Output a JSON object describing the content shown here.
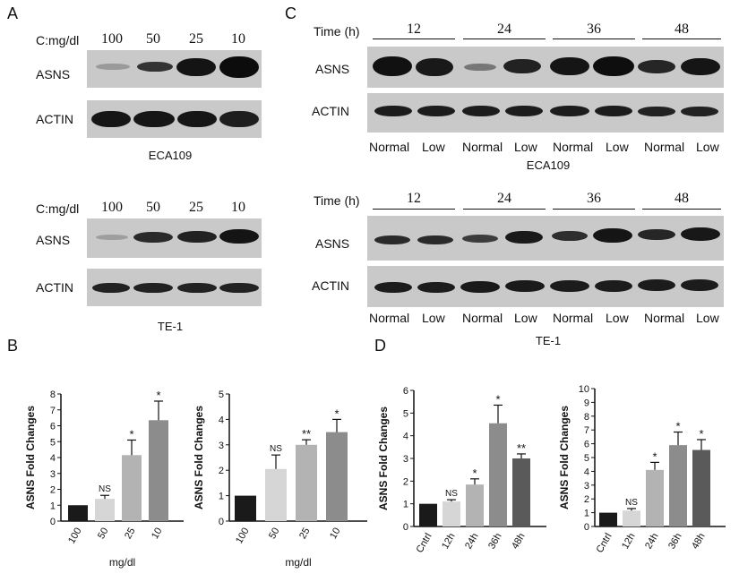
{
  "panels": {
    "A": "A",
    "B": "B",
    "C": "C",
    "D": "D"
  },
  "blot_labels": {
    "asns": "ASNS",
    "actin": "ACTIN",
    "conc_label": "C:mg/dl",
    "time_label": "Time (h)"
  },
  "concentrations": [
    "100",
    "50",
    "25",
    "10"
  ],
  "time_points": [
    "12",
    "24",
    "36",
    "48"
  ],
  "lane_pair": [
    "Normal",
    "Low"
  ],
  "cell_lines": {
    "eca": "ECA109",
    "te": "TE-1"
  },
  "band_colors": {
    "dark": "#141414",
    "gel": "#c9c9c9"
  },
  "chart_data": [
    {
      "id": "B-left",
      "type": "bar",
      "ylabel": "ASNS Fold Changes",
      "xlabel": "mg/dl",
      "categories": [
        "100",
        "50",
        "25",
        "10"
      ],
      "values": [
        1.0,
        1.4,
        4.15,
        6.35
      ],
      "errors": [
        0,
        0.22,
        0.95,
        1.2
      ],
      "annotations": [
        "",
        "NS",
        "*",
        "*"
      ],
      "ylim": [
        0,
        8
      ],
      "yticks": [
        0,
        1,
        2,
        3,
        4,
        5,
        6,
        7,
        8
      ],
      "colors": [
        "#1a1a1a",
        "#d6d6d6",
        "#b3b3b3",
        "#8c8c8c"
      ]
    },
    {
      "id": "B-right",
      "type": "bar",
      "ylabel": "ASNS Fold Changes",
      "xlabel": "mg/dl",
      "categories": [
        "100",
        "50",
        "25",
        "10"
      ],
      "values": [
        1.0,
        2.05,
        3.0,
        3.5
      ],
      "errors": [
        0,
        0.55,
        0.2,
        0.5
      ],
      "annotations": [
        "",
        "NS",
        "**",
        "*"
      ],
      "ylim": [
        0,
        5
      ],
      "yticks": [
        0,
        1,
        2,
        3,
        4,
        5
      ],
      "colors": [
        "#1a1a1a",
        "#d6d6d6",
        "#b3b3b3",
        "#8c8c8c"
      ]
    },
    {
      "id": "D-left",
      "type": "bar",
      "ylabel": "ASNS Fold Changes",
      "xlabel": "",
      "categories": [
        "Cntrl",
        "12h",
        "24h",
        "36h",
        "48h"
      ],
      "values": [
        1.0,
        1.1,
        1.85,
        4.55,
        3.0
      ],
      "errors": [
        0,
        0.08,
        0.25,
        0.8,
        0.2
      ],
      "annotations": [
        "",
        "NS",
        "*",
        "*",
        "**"
      ],
      "ylim": [
        0,
        6
      ],
      "yticks": [
        0,
        1,
        2,
        3,
        4,
        5,
        6
      ],
      "colors": [
        "#1a1a1a",
        "#d6d6d6",
        "#b3b3b3",
        "#8c8c8c",
        "#5a5a5a"
      ]
    },
    {
      "id": "D-right",
      "type": "bar",
      "ylabel": "ASNS Fold Changes",
      "xlabel": "",
      "categories": [
        "Cntrl",
        "12h",
        "24h",
        "36h",
        "48h"
      ],
      "values": [
        1.0,
        1.15,
        4.1,
        5.9,
        5.55
      ],
      "errors": [
        0,
        0.15,
        0.55,
        0.95,
        0.75
      ],
      "annotations": [
        "",
        "NS",
        "*",
        "*",
        "*"
      ],
      "ylim": [
        0,
        10
      ],
      "yticks": [
        0,
        1,
        2,
        3,
        4,
        5,
        6,
        7,
        8,
        9,
        10
      ],
      "colors": [
        "#1a1a1a",
        "#d6d6d6",
        "#b3b3b3",
        "#8c8c8c",
        "#5a5a5a"
      ]
    }
  ]
}
